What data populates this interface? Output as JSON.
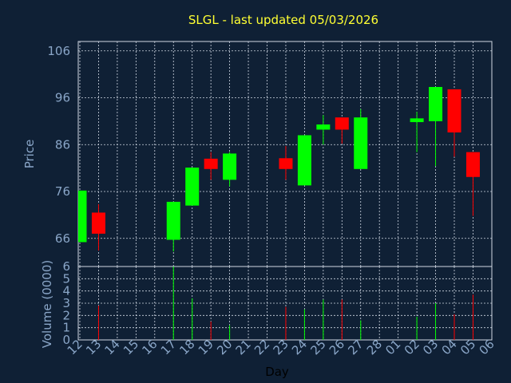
{
  "chart_data": {
    "type": "candlestick",
    "title": "SLGL - last updated 05/03/2026",
    "xlabel": "Day",
    "ylabel_price": "Price",
    "ylabel_volume": "Volume (0000)",
    "x_tick_labels": [
      "12",
      "13",
      "14",
      "15",
      "16",
      "17",
      "18",
      "19",
      "20",
      "21",
      "22",
      "23",
      "24",
      "25",
      "26",
      "27",
      "28",
      "01",
      "02",
      "03",
      "04",
      "05",
      "06"
    ],
    "price_axis": {
      "ticks": [
        66,
        76,
        86,
        96,
        106
      ],
      "range": [
        60,
        108
      ]
    },
    "volume_axis": {
      "ticks": [
        0,
        1,
        2,
        3,
        4,
        5,
        6
      ],
      "range": [
        0,
        6
      ]
    },
    "grid": true,
    "colors": {
      "up": "#00ff00",
      "down": "#ff0000",
      "background": "#0f2035",
      "grid": "#d0d8e4",
      "title": "#ffff33",
      "ticks": "#8aa6c8"
    },
    "candles": [
      {
        "day": "12",
        "open": 65.2,
        "high": 76.2,
        "low": 65.2,
        "close": 76.2,
        "volume": 0
      },
      {
        "day": "13",
        "open": 71.5,
        "high": 73.3,
        "low": 63.4,
        "close": 67.0,
        "volume": 2.8
      },
      {
        "day": "17",
        "open": 65.7,
        "high": 73.8,
        "low": 63.2,
        "close": 73.8,
        "volume": 6.0
      },
      {
        "day": "18",
        "open": 73.0,
        "high": 81.1,
        "low": 73.0,
        "close": 81.1,
        "volume": 3.4
      },
      {
        "day": "19",
        "open": 83.0,
        "high": 84.4,
        "low": 78.5,
        "close": 80.8,
        "volume": 1.5
      },
      {
        "day": "20",
        "open": 78.5,
        "high": 84.4,
        "low": 77.1,
        "close": 84.1,
        "volume": 1.2
      },
      {
        "day": "23",
        "open": 83.1,
        "high": 85.7,
        "low": 78.5,
        "close": 80.8,
        "volume": 2.7
      },
      {
        "day": "24",
        "open": 77.3,
        "high": 88.0,
        "low": 77.3,
        "close": 88.0,
        "volume": 2.5
      },
      {
        "day": "25",
        "open": 89.2,
        "high": 92.3,
        "low": 86.0,
        "close": 90.3,
        "volume": 3.3
      },
      {
        "day": "26",
        "open": 91.8,
        "high": 91.8,
        "low": 86.2,
        "close": 89.2,
        "volume": 3.3
      },
      {
        "day": "27",
        "open": 80.8,
        "high": 93.6,
        "low": 80.8,
        "close": 91.8,
        "volume": 1.6
      },
      {
        "day": "02",
        "open": 90.8,
        "high": 93.0,
        "low": 84.4,
        "close": 91.6,
        "volume": 1.9
      },
      {
        "day": "03",
        "open": 91.0,
        "high": 98.3,
        "low": 81.4,
        "close": 98.3,
        "volume": 3.0
      },
      {
        "day": "04",
        "open": 97.8,
        "high": 97.8,
        "low": 83.4,
        "close": 88.6,
        "volume": 2.1
      },
      {
        "day": "05",
        "open": 84.4,
        "high": 84.4,
        "low": 70.8,
        "close": 79.1,
        "volume": 3.7
      }
    ]
  }
}
